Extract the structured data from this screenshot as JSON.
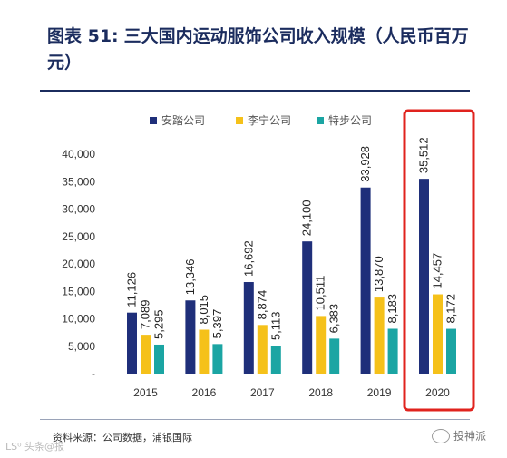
{
  "header": {
    "figure_number": "图表 51:",
    "title": "三大国内运动服饰公司收入规模（人民币百万元）"
  },
  "footer": {
    "source": "资料来源：公司数据，浦银国际",
    "watermark_left": "LS⁰ 头条@报",
    "watermark_right": "投神派"
  },
  "chart_data": {
    "type": "bar",
    "categories": [
      "2015",
      "2016",
      "2017",
      "2018",
      "2019",
      "2020"
    ],
    "series": [
      {
        "name": "安踏公司",
        "color": "#1f2f7a",
        "values": [
          11126,
          13346,
          16692,
          24100,
          33928,
          35512
        ]
      },
      {
        "name": "李宁公司",
        "color": "#f5c11a",
        "values": [
          7089,
          8015,
          8874,
          10511,
          13870,
          14457
        ]
      },
      {
        "name": "特步公司",
        "color": "#1ba5a3",
        "values": [
          5295,
          5397,
          5113,
          6383,
          8183,
          8172
        ]
      }
    ],
    "y_ticks": [
      "-",
      "5,000",
      "10,000",
      "15,000",
      "20,000",
      "25,000",
      "30,000",
      "35,000",
      "40,000"
    ],
    "ylim": [
      0,
      40000
    ],
    "legend_position": "top",
    "grid": false,
    "highlight": {
      "category": "2020",
      "color": "#e0231e"
    }
  }
}
